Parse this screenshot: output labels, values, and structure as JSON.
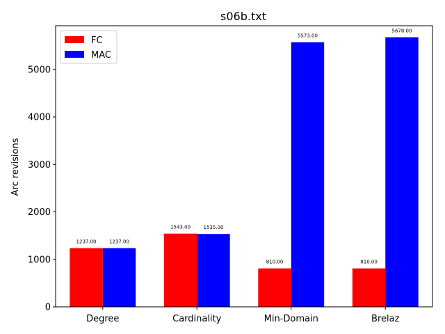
{
  "chart_data": {
    "type": "bar",
    "title": "s06b.txt",
    "xlabel": "",
    "ylabel": "Arc revisions",
    "categories": [
      "Degree",
      "Cardinality",
      "Min-Domain",
      "Brelaz"
    ],
    "series": [
      {
        "name": "FC",
        "color": "#ff0000",
        "values": [
          1237.0,
          1543.0,
          810.0,
          810.0
        ],
        "labels": [
          "1237.00",
          "1543.00",
          "810.00",
          "810.00"
        ]
      },
      {
        "name": "MAC",
        "color": "#0000ff",
        "values": [
          1237.0,
          1535.0,
          5573.0,
          5678.0
        ],
        "labels": [
          "1237.00",
          "1535.00",
          "5573.00",
          "5678.00"
        ]
      }
    ],
    "ylim": [
      0,
      5920
    ],
    "yticks": [
      0,
      1000,
      2000,
      3000,
      4000,
      5000
    ],
    "ytick_labels": [
      "0",
      "1000",
      "2000",
      "3000",
      "4000",
      "5000"
    ],
    "legend_position": "top-left",
    "grid": false
  }
}
